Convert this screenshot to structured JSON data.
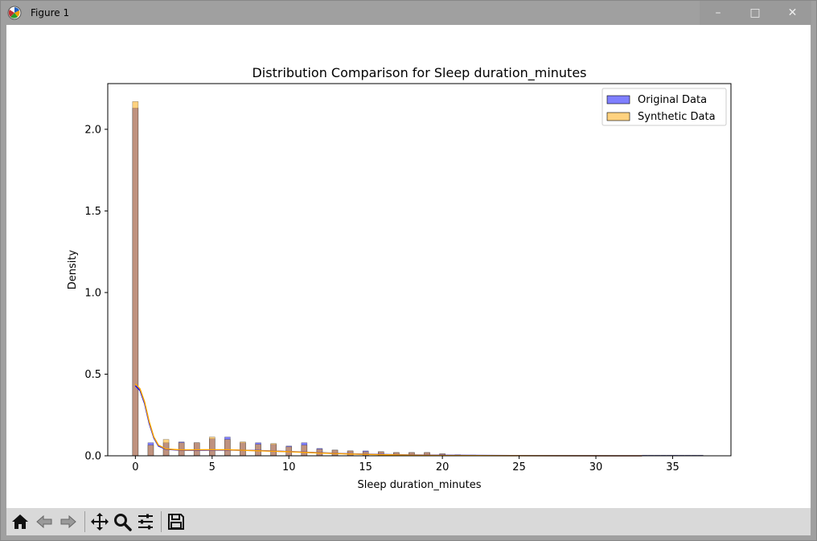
{
  "window": {
    "title": "Figure 1",
    "minimize_glyph": "–",
    "maximize_glyph": "□",
    "close_glyph": "✕"
  },
  "icons": {
    "app": "matplotlib-logo-icon",
    "home": "home-icon",
    "back": "back-arrow-icon",
    "forward": "forward-arrow-icon",
    "pan": "pan-move-icon",
    "zoom": "zoom-magnifier-icon",
    "configure": "configure-subplots-icon",
    "save": "save-disk-icon"
  },
  "chart_data": {
    "type": "bar",
    "title": "Distribution Comparison for Sleep duration_minutes",
    "xlabel": "Sleep duration_minutes",
    "ylabel": "Density",
    "xlim": [
      -1.8,
      38.8
    ],
    "ylim": [
      0,
      2.28
    ],
    "xticks": [
      0,
      5,
      10,
      15,
      20,
      25,
      30,
      35
    ],
    "yticks": [
      0.0,
      0.5,
      1.0,
      1.5,
      2.0
    ],
    "grid": false,
    "legend_position": "top-right",
    "bin_width": 0.37,
    "series": [
      {
        "name": "Original Data",
        "color": "#0000ff",
        "alpha": 0.5,
        "bars": [
          {
            "x": 0,
            "y": 2.13
          },
          {
            "x": 1,
            "y": 0.08
          },
          {
            "x": 2,
            "y": 0.08
          },
          {
            "x": 3,
            "y": 0.085
          },
          {
            "x": 4,
            "y": 0.08
          },
          {
            "x": 5,
            "y": 0.105
          },
          {
            "x": 6,
            "y": 0.115
          },
          {
            "x": 7,
            "y": 0.08
          },
          {
            "x": 8,
            "y": 0.08
          },
          {
            "x": 9,
            "y": 0.07
          },
          {
            "x": 10,
            "y": 0.06
          },
          {
            "x": 11,
            "y": 0.08
          },
          {
            "x": 12,
            "y": 0.045
          },
          {
            "x": 13,
            "y": 0.035
          },
          {
            "x": 14,
            "y": 0.03
          },
          {
            "x": 15,
            "y": 0.03
          },
          {
            "x": 16,
            "y": 0.025
          },
          {
            "x": 17,
            "y": 0.02
          },
          {
            "x": 18,
            "y": 0.02
          },
          {
            "x": 19,
            "y": 0.02
          },
          {
            "x": 20,
            "y": 0.012
          },
          {
            "x": 21,
            "y": 0.006
          },
          {
            "x": 22,
            "y": 0.004
          },
          {
            "x": 33.2,
            "y": 0.004
          },
          {
            "x": 33.6,
            "y": 0.004
          },
          {
            "x": 34.0,
            "y": 0.004
          },
          {
            "x": 34.4,
            "y": 0.004
          },
          {
            "x": 34.8,
            "y": 0.004
          },
          {
            "x": 35.2,
            "y": 0.004
          },
          {
            "x": 35.6,
            "y": 0.004
          },
          {
            "x": 36.0,
            "y": 0.004
          },
          {
            "x": 36.4,
            "y": 0.004
          },
          {
            "x": 36.8,
            "y": 0.004
          }
        ],
        "kde": [
          [
            0,
            0.43
          ],
          [
            0.3,
            0.4
          ],
          [
            0.6,
            0.32
          ],
          [
            0.9,
            0.2
          ],
          [
            1.2,
            0.11
          ],
          [
            1.5,
            0.06
          ],
          [
            2,
            0.04
          ],
          [
            3,
            0.034
          ],
          [
            5,
            0.035
          ],
          [
            6,
            0.036
          ],
          [
            8,
            0.032
          ],
          [
            10,
            0.026
          ],
          [
            12,
            0.018
          ],
          [
            14,
            0.012
          ],
          [
            16,
            0.008
          ],
          [
            18,
            0.005
          ],
          [
            20,
            0.003
          ],
          [
            25,
            0.001
          ],
          [
            33,
            0.0
          ]
        ]
      },
      {
        "name": "Synthetic Data",
        "color": "#ffa500",
        "alpha": 0.5,
        "bars": [
          {
            "x": 0,
            "y": 2.17
          },
          {
            "x": 1,
            "y": 0.065
          },
          {
            "x": 2,
            "y": 0.1
          },
          {
            "x": 3,
            "y": 0.08
          },
          {
            "x": 4,
            "y": 0.08
          },
          {
            "x": 5,
            "y": 0.115
          },
          {
            "x": 6,
            "y": 0.1
          },
          {
            "x": 7,
            "y": 0.085
          },
          {
            "x": 8,
            "y": 0.07
          },
          {
            "x": 9,
            "y": 0.075
          },
          {
            "x": 10,
            "y": 0.055
          },
          {
            "x": 11,
            "y": 0.065
          },
          {
            "x": 12,
            "y": 0.04
          },
          {
            "x": 13,
            "y": 0.035
          },
          {
            "x": 14,
            "y": 0.03
          },
          {
            "x": 15,
            "y": 0.025
          },
          {
            "x": 16,
            "y": 0.025
          },
          {
            "x": 17,
            "y": 0.02
          },
          {
            "x": 18,
            "y": 0.02
          },
          {
            "x": 19,
            "y": 0.02
          },
          {
            "x": 20,
            "y": 0.012
          },
          {
            "x": 21,
            "y": 0.006
          },
          {
            "x": 22,
            "y": 0.004
          }
        ],
        "kde": [
          [
            0,
            0.44
          ],
          [
            0.3,
            0.41
          ],
          [
            0.6,
            0.33
          ],
          [
            0.9,
            0.21
          ],
          [
            1.2,
            0.115
          ],
          [
            1.5,
            0.065
          ],
          [
            2,
            0.042
          ],
          [
            3,
            0.036
          ],
          [
            5,
            0.037
          ],
          [
            6,
            0.037
          ],
          [
            8,
            0.031
          ],
          [
            10,
            0.025
          ],
          [
            12,
            0.017
          ],
          [
            14,
            0.011
          ],
          [
            16,
            0.007
          ],
          [
            18,
            0.004
          ],
          [
            20,
            0.002
          ],
          [
            25,
            0.0005
          ],
          [
            33,
            0.0
          ]
        ]
      }
    ]
  }
}
